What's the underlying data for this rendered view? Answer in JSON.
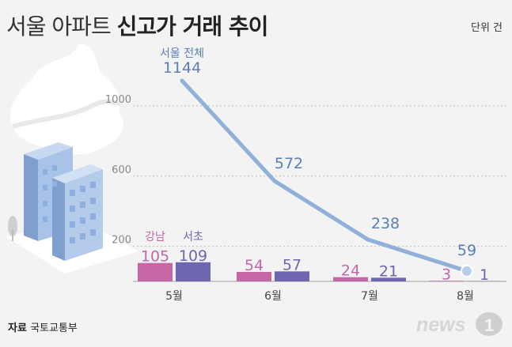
{
  "title": {
    "regular": "서울 아파트 ",
    "bold": "신고가 거래 추이"
  },
  "unit": "단위 건",
  "source": {
    "label": "자료",
    "name": "국토교통부"
  },
  "logo_text": "news1",
  "colors": {
    "total": "#8fb0d8",
    "total_text": "#5b7fb4",
    "gangnam": "#c566a7",
    "seocho": "#6f66b0",
    "axis": "#bbbbbb",
    "building": "#9dbbe2"
  },
  "chart_data": {
    "type": "bar+line",
    "categories": [
      "5월",
      "6월",
      "7월",
      "8월"
    ],
    "yticks": [
      200,
      600,
      1000
    ],
    "series": [
      {
        "name": "서울 전체",
        "kind": "line",
        "values": [
          1144,
          572,
          238,
          59
        ]
      },
      {
        "name": "강남",
        "kind": "bar",
        "values": [
          105,
          54,
          24,
          3
        ]
      },
      {
        "name": "서초",
        "kind": "bar",
        "values": [
          109,
          57,
          21,
          1
        ]
      }
    ]
  }
}
